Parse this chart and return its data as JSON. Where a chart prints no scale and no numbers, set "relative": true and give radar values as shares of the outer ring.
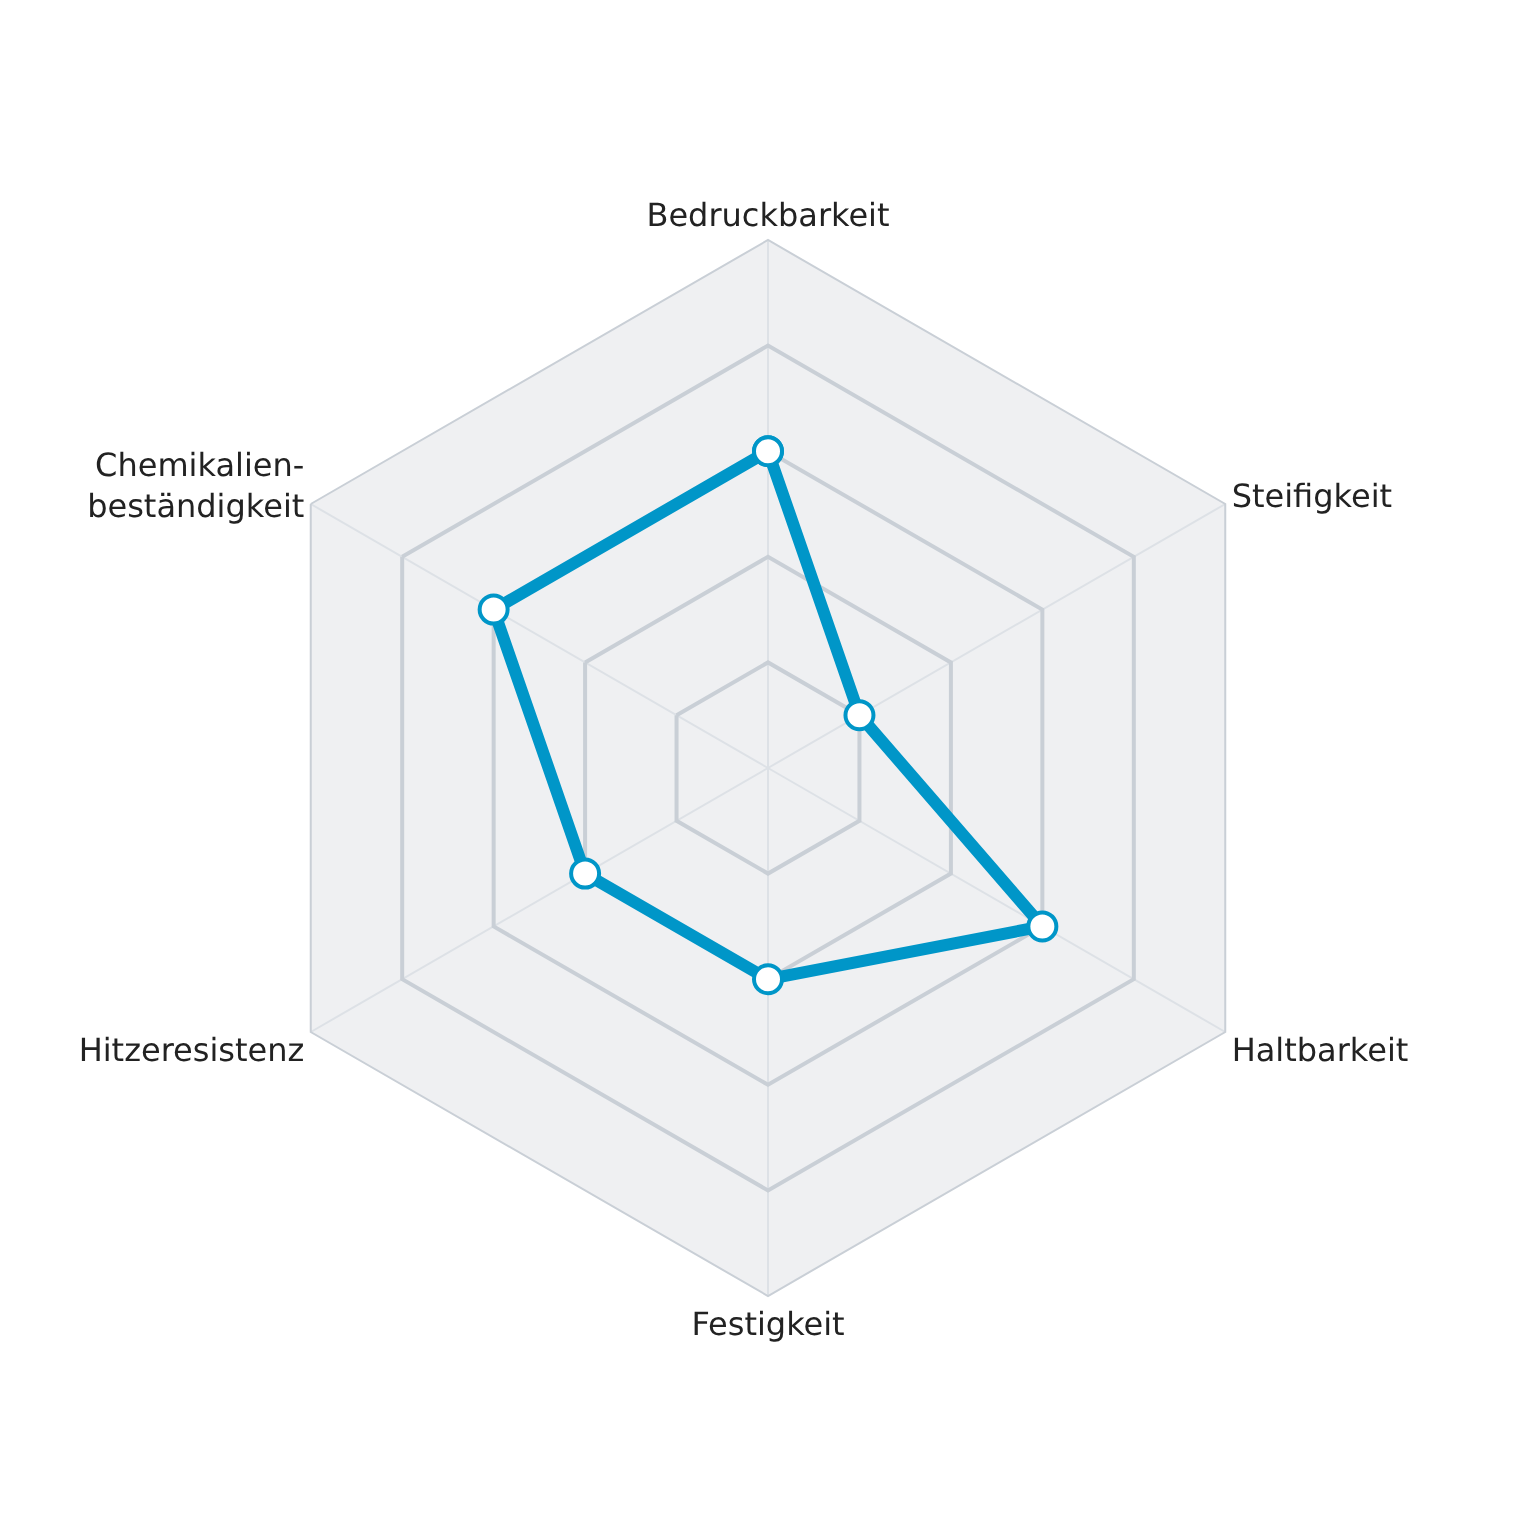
{
  "chart_data": {
    "type": "radar",
    "relative": true,
    "grid": true,
    "marker": "circle",
    "line_style": "solid",
    "categories": [
      "Bedruckbarkeit",
      "Steifigkeit",
      "Haltbarkeit",
      "Festigkeit",
      "Hitzeresistenz",
      "Chemikalien-\nbeständigkeit"
    ],
    "series": [
      {
        "color": "#0096c8",
        "values": [
          0.6,
          0.2,
          0.6,
          0.4,
          0.4,
          0.6
        ]
      }
    ]
  }
}
